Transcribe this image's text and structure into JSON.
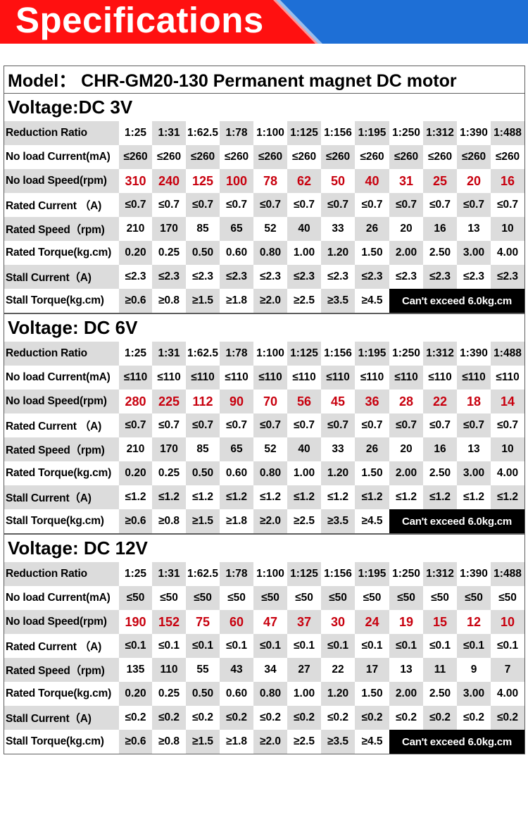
{
  "banner": {
    "title": "Specifications",
    "colors": {
      "red": "#ff1010",
      "blue": "#1e6fd6"
    }
  },
  "model": "Model： CHR-GM20-130 Permanent magnet DC motor",
  "sections": [
    {
      "voltage_title": "Voltage:DC 3V",
      "rows": [
        {
          "label": "Reduction Ratio",
          "values": [
            "1:25",
            "1:31",
            "1:62.5",
            "1:78",
            "1:100",
            "1:125",
            "1:156",
            "1:195",
            "1:250",
            "1:312",
            "1:390",
            "1:488"
          ]
        },
        {
          "label": "No load Current(mA)",
          "values": [
            "≤260",
            "≤260",
            "≤260",
            "≤260",
            "≤260",
            "≤260",
            "≤260",
            "≤260",
            "≤260",
            "≤260",
            "≤260",
            "≤260"
          ]
        },
        {
          "label": "No load Speed(rpm)",
          "values": [
            "310",
            "240",
            "125",
            "100",
            "78",
            "62",
            "50",
            "40",
            "31",
            "25",
            "20",
            "16"
          ]
        },
        {
          "label": "Rated Current （A)",
          "values": [
            "≤0.7",
            "≤0.7",
            "≤0.7",
            "≤0.7",
            "≤0.7",
            "≤0.7",
            "≤0.7",
            "≤0.7",
            "≤0.7",
            "≤0.7",
            "≤0.7",
            "≤0.7"
          ]
        },
        {
          "label": "Rated Speed（rpm)",
          "values": [
            "210",
            "170",
            "85",
            "65",
            "52",
            "40",
            "33",
            "26",
            "20",
            "16",
            "13",
            "10"
          ]
        },
        {
          "label": "Rated Torque(kg.cm)",
          "values": [
            "0.20",
            "0.25",
            "0.50",
            "0.60",
            "0.80",
            "1.00",
            "1.20",
            "1.50",
            "2.00",
            "2.50",
            "3.00",
            "4.00"
          ]
        },
        {
          "label": "Stall Current（A)",
          "values": [
            "≤2.3",
            "≤2.3",
            "≤2.3",
            "≤2.3",
            "≤2.3",
            "≤2.3",
            "≤2.3",
            "≤2.3",
            "≤2.3",
            "≤2.3",
            "≤2.3",
            "≤2.3"
          ]
        },
        {
          "label": "Stall Torque(kg.cm)",
          "values": [
            "≥0.6",
            "≥0.8",
            "≥1.5",
            "≥1.8",
            "≥2.0",
            "≥2.5",
            "≥3.5",
            "≥4.5"
          ],
          "note": "Can't exceed 6.0kg.cm"
        }
      ]
    },
    {
      "voltage_title": "Voltage: DC 6V",
      "rows": [
        {
          "label": "Reduction Ratio",
          "values": [
            "1:25",
            "1:31",
            "1:62.5",
            "1:78",
            "1:100",
            "1:125",
            "1:156",
            "1:195",
            "1:250",
            "1:312",
            "1:390",
            "1:488"
          ]
        },
        {
          "label": "No load Current(mA)",
          "values": [
            "≤110",
            "≤110",
            "≤110",
            "≤110",
            "≤110",
            "≤110",
            "≤110",
            "≤110",
            "≤110",
            "≤110",
            "≤110",
            "≤110"
          ]
        },
        {
          "label": "No load Speed(rpm)",
          "values": [
            "280",
            "225",
            "112",
            "90",
            "70",
            "56",
            "45",
            "36",
            "28",
            "22",
            "18",
            "14"
          ]
        },
        {
          "label": "Rated Current （A)",
          "values": [
            "≤0.7",
            "≤0.7",
            "≤0.7",
            "≤0.7",
            "≤0.7",
            "≤0.7",
            "≤0.7",
            "≤0.7",
            "≤0.7",
            "≤0.7",
            "≤0.7",
            "≤0.7"
          ]
        },
        {
          "label": "Rated Speed（rpm)",
          "values": [
            "210",
            "170",
            "85",
            "65",
            "52",
            "40",
            "33",
            "26",
            "20",
            "16",
            "13",
            "10"
          ]
        },
        {
          "label": "Rated Torque(kg.cm)",
          "values": [
            "0.20",
            "0.25",
            "0.50",
            "0.60",
            "0.80",
            "1.00",
            "1.20",
            "1.50",
            "2.00",
            "2.50",
            "3.00",
            "4.00"
          ]
        },
        {
          "label": "Stall Current（A)",
          "values": [
            "≤1.2",
            "≤1.2",
            "≤1.2",
            "≤1.2",
            "≤1.2",
            "≤1.2",
            "≤1.2",
            "≤1.2",
            "≤1.2",
            "≤1.2",
            "≤1.2",
            "≤1.2"
          ]
        },
        {
          "label": "Stall Torque(kg.cm)",
          "values": [
            "≥0.6",
            "≥0.8",
            "≥1.5",
            "≥1.8",
            "≥2.0",
            "≥2.5",
            "≥3.5",
            "≥4.5"
          ],
          "note": "Can't exceed 6.0kg.cm"
        }
      ]
    },
    {
      "voltage_title": "Voltage: DC 12V",
      "rows": [
        {
          "label": "Reduction Ratio",
          "values": [
            "1:25",
            "1:31",
            "1:62.5",
            "1:78",
            "1:100",
            "1:125",
            "1:156",
            "1:195",
            "1:250",
            "1:312",
            "1:390",
            "1:488"
          ]
        },
        {
          "label": "No load Current(mA)",
          "values": [
            "≤50",
            "≤50",
            "≤50",
            "≤50",
            "≤50",
            "≤50",
            "≤50",
            "≤50",
            "≤50",
            "≤50",
            "≤50",
            "≤50"
          ]
        },
        {
          "label": "No load Speed(rpm)",
          "values": [
            "190",
            "152",
            "75",
            "60",
            "47",
            "37",
            "30",
            "24",
            "19",
            "15",
            "12",
            "10"
          ]
        },
        {
          "label": "Rated Current （A)",
          "values": [
            "≤0.1",
            "≤0.1",
            "≤0.1",
            "≤0.1",
            "≤0.1",
            "≤0.1",
            "≤0.1",
            "≤0.1",
            "≤0.1",
            "≤0.1",
            "≤0.1",
            "≤0.1"
          ]
        },
        {
          "label": "Rated Speed（rpm)",
          "values": [
            "135",
            "110",
            "55",
            "43",
            "34",
            "27",
            "22",
            "17",
            "13",
            "11",
            "9",
            "7"
          ]
        },
        {
          "label": "Rated Torque(kg.cm)",
          "values": [
            "0.20",
            "0.25",
            "0.50",
            "0.60",
            "0.80",
            "1.00",
            "1.20",
            "1.50",
            "2.00",
            "2.50",
            "3.00",
            "4.00"
          ]
        },
        {
          "label": "Stall Current（A)",
          "values": [
            "≤0.2",
            "≤0.2",
            "≤0.2",
            "≤0.2",
            "≤0.2",
            "≤0.2",
            "≤0.2",
            "≤0.2",
            "≤0.2",
            "≤0.2",
            "≤0.2",
            "≤0.2"
          ]
        },
        {
          "label": "Stall Torque(kg.cm)",
          "values": [
            "≥0.6",
            "≥0.8",
            "≥1.5",
            "≥1.8",
            "≥2.0",
            "≥2.5",
            "≥3.5",
            "≥4.5"
          ],
          "note": "Can't exceed 6.0kg.cm"
        }
      ]
    }
  ]
}
